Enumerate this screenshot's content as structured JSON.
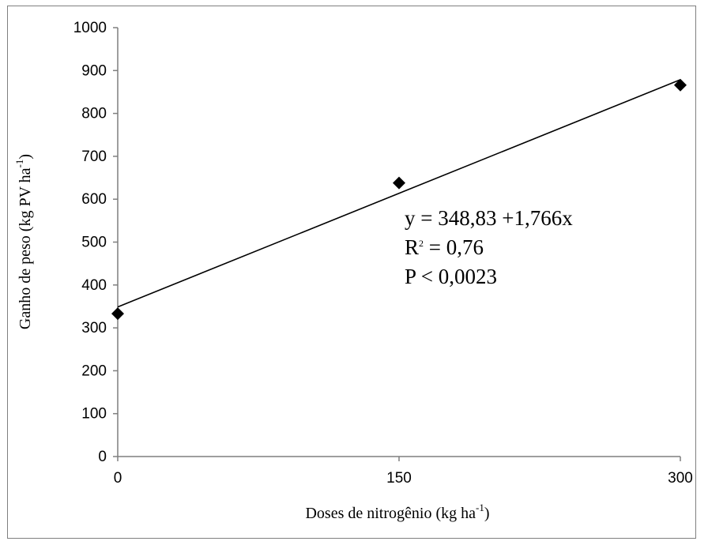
{
  "chart_data": {
    "type": "scatter",
    "x": [
      0,
      150,
      300
    ],
    "y": [
      333,
      638,
      866
    ],
    "xlabel": "Doses de nitrogênio (kg ha",
    "xlabel_sup": "-1",
    "xlabel_suffix": ")",
    "ylabel": "Ganho de peso (kg PV ha",
    "ylabel_sup": "-1",
    "ylabel_suffix": ")",
    "xlim": [
      0,
      300
    ],
    "ylim": [
      0,
      1000
    ],
    "x_ticks": [
      "0",
      "150",
      "300"
    ],
    "y_ticks": [
      "0",
      "100",
      "200",
      "300",
      "400",
      "500",
      "600",
      "700",
      "800",
      "900",
      "1000"
    ],
    "trendline": {
      "intercept": 348.83,
      "slope": 1.766
    },
    "annotations": {
      "equation": "y = 348,83 +1,766x",
      "r2_prefix": "R",
      "r2_sup": "2",
      "r2_value": " = 0,76",
      "p_value": "P < 0,0023"
    },
    "grid": false,
    "legend": "none",
    "marker": "diamond",
    "colors": {
      "marker": "#000000",
      "line": "#000000",
      "axis": "#7f7f7f"
    }
  }
}
